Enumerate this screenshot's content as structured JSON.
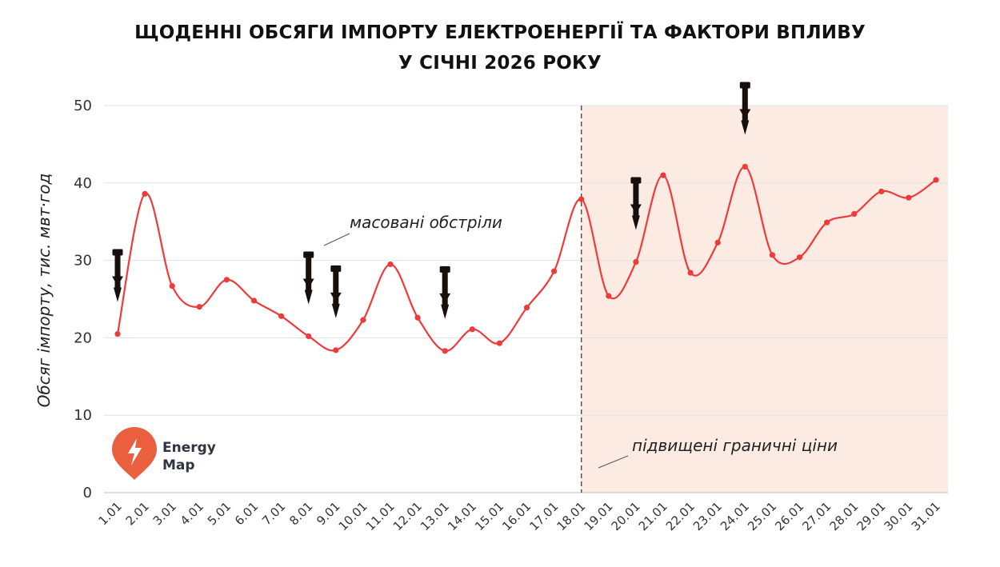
{
  "chart_data": {
    "type": "line",
    "title_line1": "ЩОДЕННІ ОБСЯГИ ІМПОРТУ ЕЛЕКТРОЕНЕРГІЇ ТА ФАКТОРИ ВПЛИВУ",
    "title_line2": "У СІЧНІ 2026 РОКУ",
    "ylabel": "Обсяг імпорту, тис. мвт·год",
    "xlabel": "",
    "ylim": [
      0,
      50
    ],
    "yticks": [
      0,
      10,
      20,
      30,
      40,
      50
    ],
    "grid": true,
    "categories": [
      "1.01",
      "2.01",
      "3.01",
      "4.01",
      "5.01",
      "6.01",
      "7.01",
      "8.01",
      "9.01",
      "10.01",
      "11.01",
      "12.01",
      "13.01",
      "14.01",
      "15.01",
      "16.01",
      "17.01",
      "18.01",
      "19.01",
      "20.01",
      "21.01",
      "22.01",
      "23.01",
      "24.01",
      "25.01",
      "26.01",
      "27.01",
      "28.01",
      "29.01",
      "30.01",
      "31.01"
    ],
    "values": [
      20.5,
      38.6,
      26.7,
      24.0,
      27.5,
      24.8,
      22.8,
      20.2,
      18.4,
      22.3,
      29.5,
      22.6,
      18.3,
      21.1,
      19.3,
      23.9,
      28.6,
      37.9,
      25.4,
      29.8,
      41.0,
      28.4,
      32.3,
      42.1,
      30.7,
      30.4,
      34.9,
      36.0,
      38.9,
      38.1,
      40.4
    ],
    "line_color": "#f03a3a",
    "shaded_region_color": "#fcebe3",
    "shaded_region_start": "18.01",
    "shaded_region_end": "31.01",
    "annotations": [
      {
        "text": "масовані обстріли"
      },
      {
        "text": "підвищені граничні ціни"
      }
    ],
    "missile_icon_days": [
      "1.01",
      "8.01",
      "9.01",
      "13.01",
      "20.01",
      "24.01"
    ],
    "missile_icon_color": "#160f0c"
  },
  "logo": {
    "line1": "Energy",
    "line2": "Map",
    "color": "#ea5f3d"
  }
}
